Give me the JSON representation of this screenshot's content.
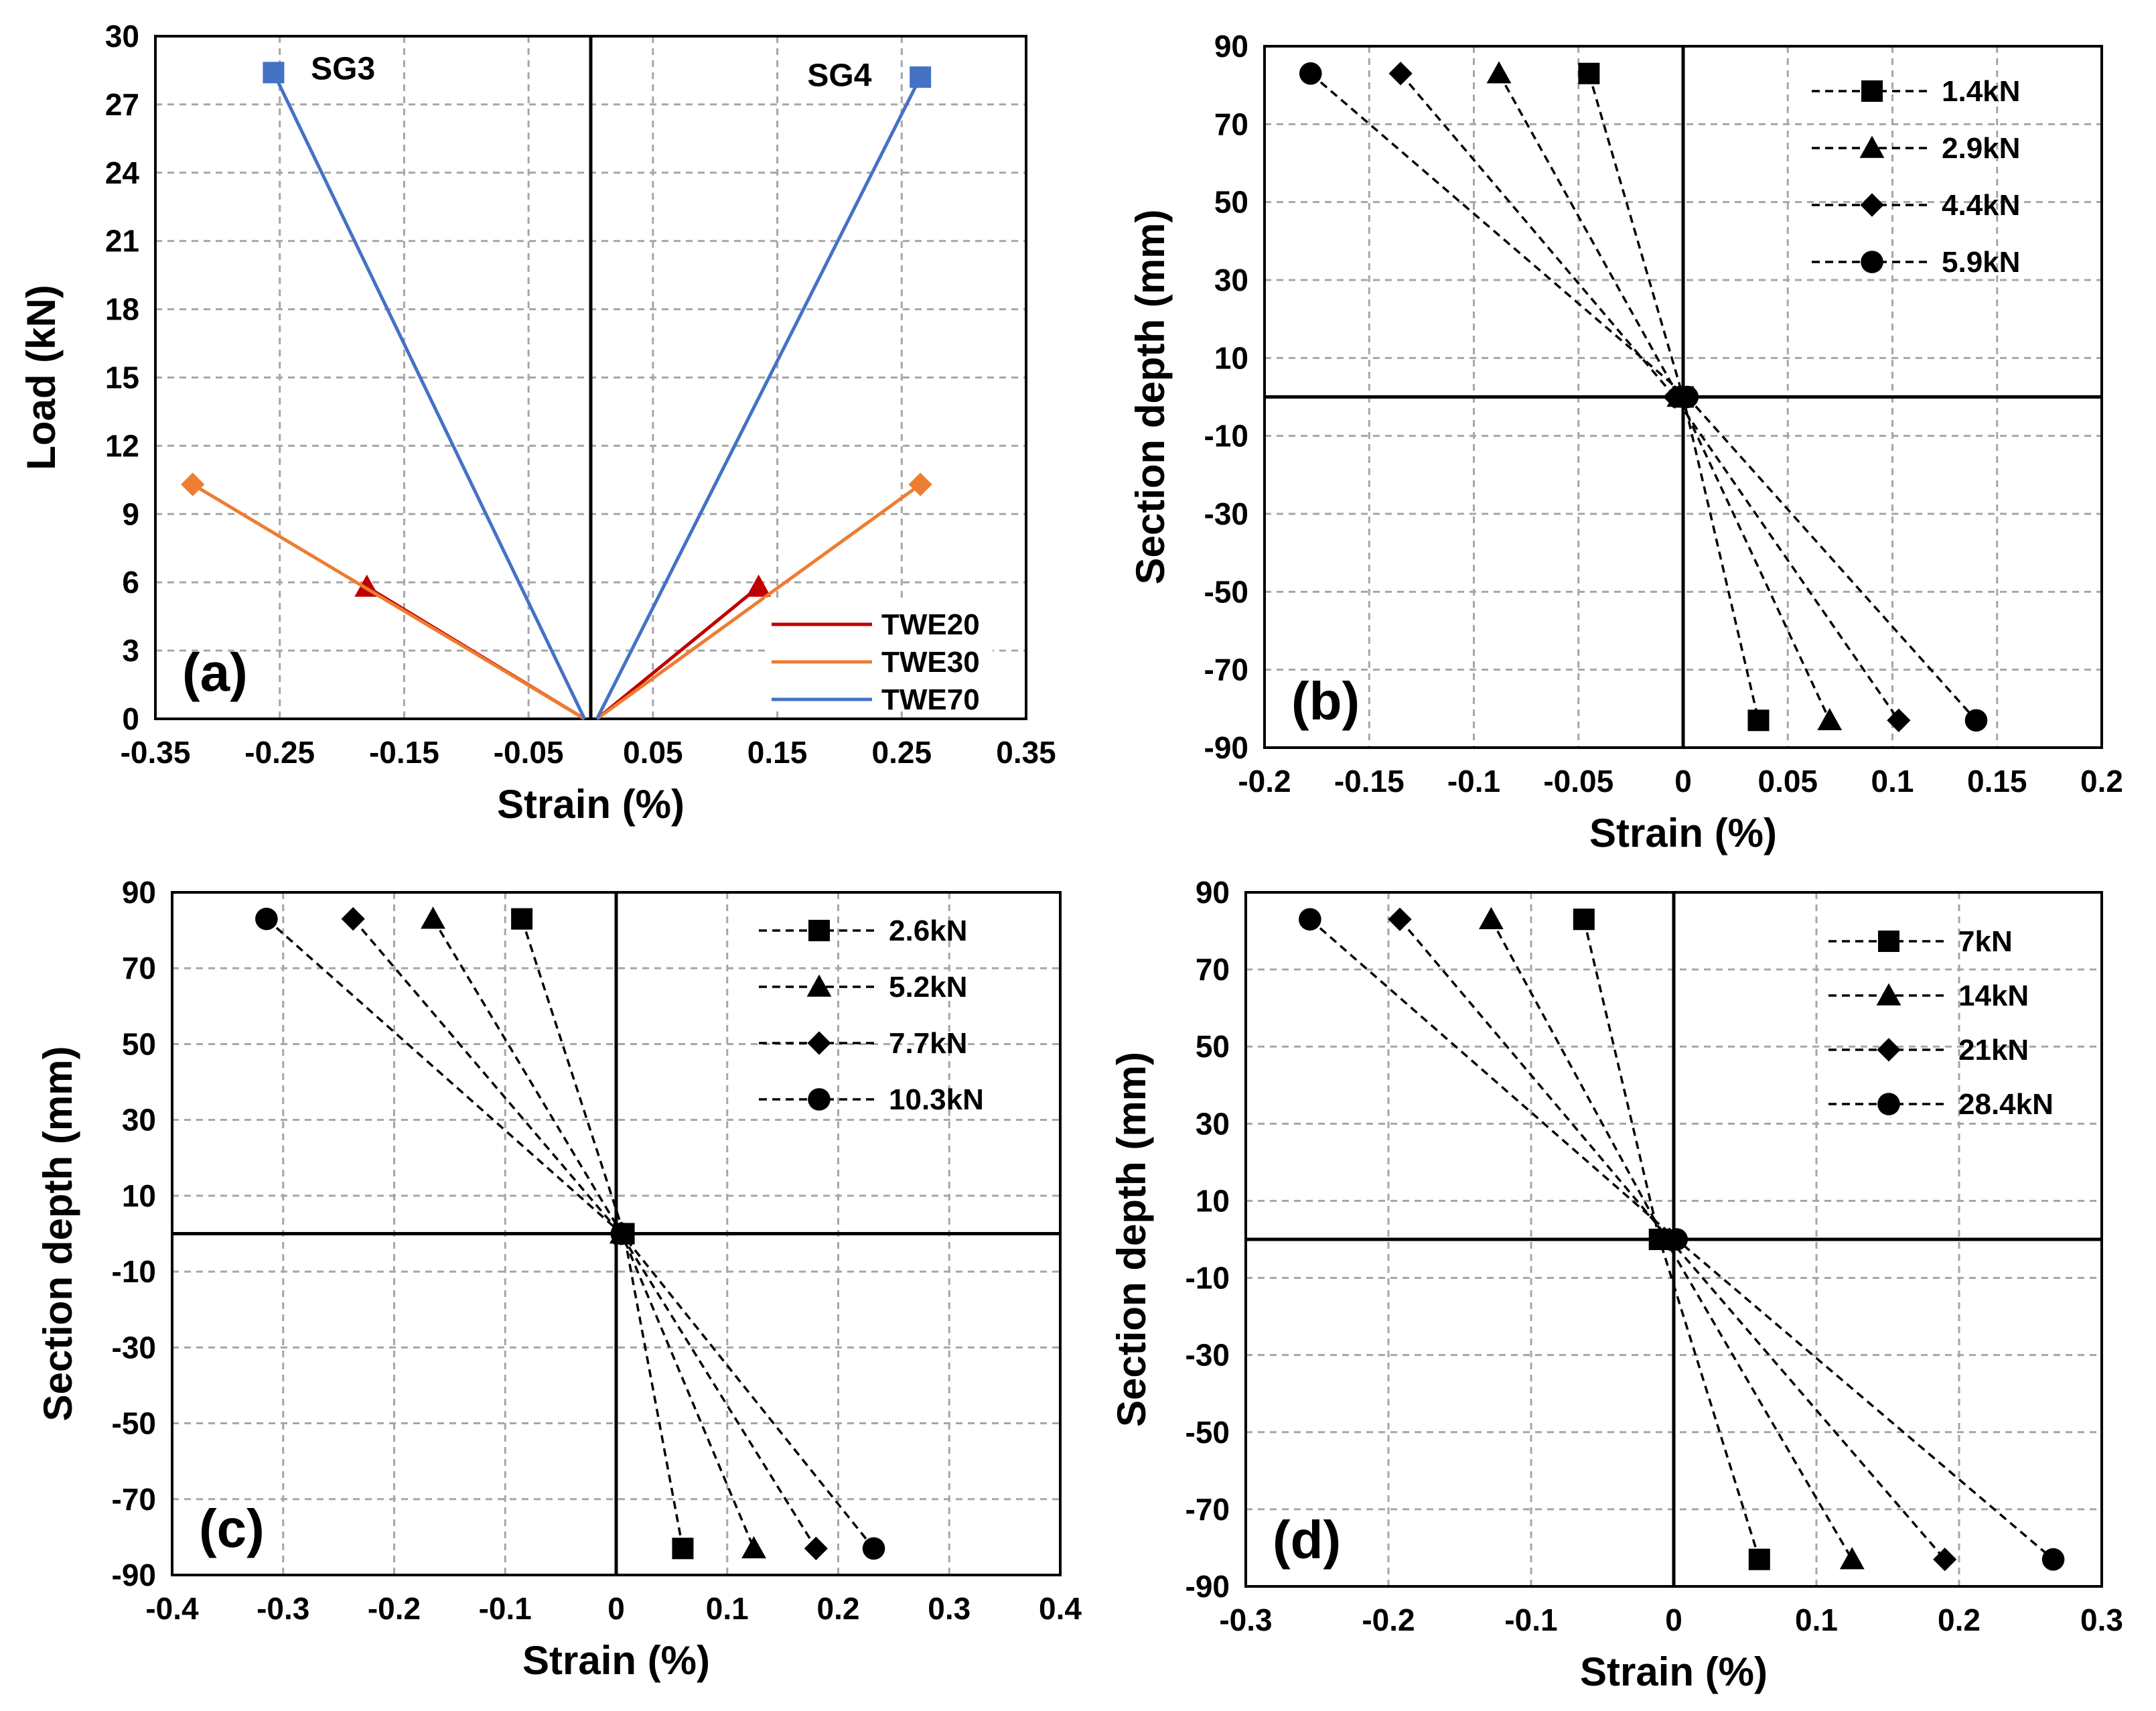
{
  "chart_data": [
    {
      "type": "line",
      "panel_label": "(a)",
      "xlabel": "Strain (%)",
      "ylabel": "Load (kN)",
      "xlim": [
        -0.35,
        0.35
      ],
      "ylim": [
        0,
        30
      ],
      "x_ticks": [
        "-0.35",
        "-0.25",
        "-0.15",
        "-0.05",
        "0.05",
        "0.15",
        "0.25",
        "0.35"
      ],
      "y_ticks": [
        "0",
        "3",
        "6",
        "9",
        "12",
        "15",
        "18",
        "21",
        "24",
        "27",
        "30"
      ],
      "grid": true,
      "legend_position": "bottom-right",
      "annotations": [
        "SG3",
        "SG4"
      ],
      "series": [
        {
          "name": "TWE20",
          "color": "#c00000",
          "marker": "triangle",
          "x": [
            -0.18,
            -0.005,
            0.005,
            0.135
          ],
          "y": [
            5.8,
            0,
            0,
            5.8
          ]
        },
        {
          "name": "TWE30",
          "color": "#ed7d31",
          "marker": "diamond",
          "x": [
            -0.32,
            -0.005,
            0.005,
            0.265
          ],
          "y": [
            10.3,
            0,
            0,
            10.3
          ]
        },
        {
          "name": "TWE70",
          "color": "#4472c4",
          "marker": "square",
          "x": [
            -0.255,
            -0.005,
            0.005,
            0.265
          ],
          "y": [
            28.4,
            0,
            0,
            28.2
          ]
        }
      ]
    },
    {
      "type": "line",
      "panel_label": "(b)",
      "xlabel": "Strain (%)",
      "ylabel": "Section depth (mm)",
      "xlim": [
        -0.2,
        0.2
      ],
      "ylim": [
        -90,
        90
      ],
      "x_ticks": [
        "-0.2",
        "-0.15",
        "-0.1",
        "-0.05",
        "0",
        "0.05",
        "0.1",
        "0.15",
        "0.2"
      ],
      "y_ticks": [
        "-90",
        "-70",
        "-50",
        "-30",
        "-10",
        "10",
        "30",
        "50",
        "70",
        "90"
      ],
      "grid": true,
      "legend_position": "top-right",
      "series": [
        {
          "name": "1.4kN",
          "marker": "square",
          "x": [
            -0.045,
            0.0,
            0.036
          ],
          "y": [
            83,
            0,
            -83
          ]
        },
        {
          "name": "2.9kN",
          "marker": "triangle",
          "x": [
            -0.088,
            -0.002,
            0.07
          ],
          "y": [
            83,
            0,
            -83
          ]
        },
        {
          "name": "4.4kN",
          "marker": "diamond",
          "x": [
            -0.135,
            -0.004,
            0.103
          ],
          "y": [
            83,
            0,
            -83
          ]
        },
        {
          "name": "5.9kN",
          "marker": "circle",
          "x": [
            -0.178,
            0.002,
            0.14
          ],
          "y": [
            83,
            0,
            -83
          ]
        }
      ]
    },
    {
      "type": "line",
      "panel_label": "(c)",
      "xlabel": "Strain (%)",
      "ylabel": "Section depth (mm)",
      "xlim": [
        -0.4,
        0.4
      ],
      "ylim": [
        -90,
        90
      ],
      "x_ticks": [
        "-0.4",
        "-0.3",
        "-0.2",
        "-0.1",
        "0",
        "0.1",
        "0.2",
        "0.3",
        "0.4"
      ],
      "y_ticks": [
        "-90",
        "-70",
        "-50",
        "-30",
        "-10",
        "10",
        "30",
        "50",
        "70",
        "90"
      ],
      "grid": true,
      "legend_position": "top-right",
      "series": [
        {
          "name": "2.6kN",
          "marker": "square",
          "x": [
            -0.085,
            0.007,
            0.06
          ],
          "y": [
            83,
            0,
            -83
          ]
        },
        {
          "name": "5.2kN",
          "marker": "triangle",
          "x": [
            -0.165,
            0.005,
            0.124
          ],
          "y": [
            83,
            0,
            -83
          ]
        },
        {
          "name": "7.7kN",
          "marker": "diamond",
          "x": [
            -0.237,
            0.004,
            0.18
          ],
          "y": [
            83,
            0,
            -83
          ]
        },
        {
          "name": "10.3kN",
          "marker": "circle",
          "x": [
            -0.315,
            0.005,
            0.232
          ],
          "y": [
            83,
            0,
            -83
          ]
        }
      ]
    },
    {
      "type": "line",
      "panel_label": "(d)",
      "xlabel": "Strain (%)",
      "ylabel": "Section depth (mm)",
      "xlim": [
        -0.3,
        0.3
      ],
      "ylim": [
        -90,
        90
      ],
      "x_ticks": [
        "-0.3",
        "-0.2",
        "-0.1",
        "0",
        "0.1",
        "0.2",
        "0.3"
      ],
      "y_ticks": [
        "-90",
        "-70",
        "-50",
        "-30",
        "-10",
        "10",
        "30",
        "50",
        "70",
        "90"
      ],
      "grid": true,
      "legend_position": "top-right",
      "series": [
        {
          "name": "7kN",
          "marker": "square",
          "x": [
            -0.063,
            -0.01,
            0.06
          ],
          "y": [
            83,
            0,
            -83
          ]
        },
        {
          "name": "14kN",
          "marker": "triangle",
          "x": [
            -0.128,
            -0.006,
            0.125
          ],
          "y": [
            83,
            0,
            -83
          ]
        },
        {
          "name": "21kN",
          "marker": "diamond",
          "x": [
            -0.192,
            -0.003,
            0.19
          ],
          "y": [
            83,
            0,
            -83
          ]
        },
        {
          "name": "28.4kN",
          "marker": "circle",
          "x": [
            -0.255,
            0.002,
            0.266
          ],
          "y": [
            83,
            0,
            -83
          ]
        }
      ]
    }
  ]
}
